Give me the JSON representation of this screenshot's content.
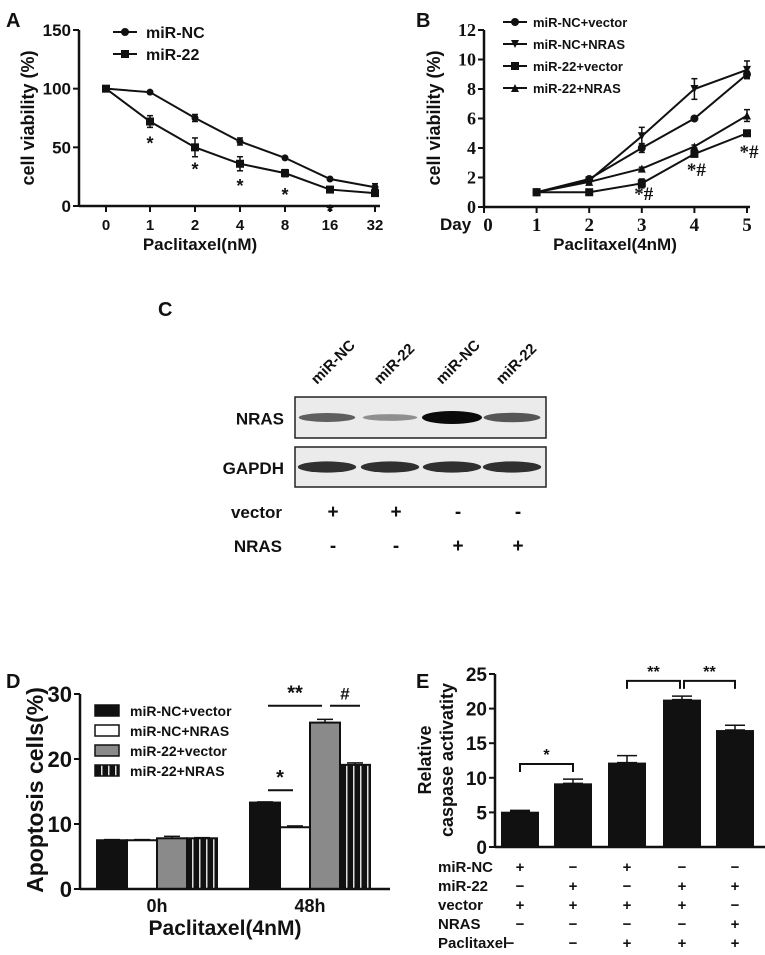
{
  "panels": {
    "A": "A",
    "B": "B",
    "C": "C",
    "D": "D",
    "E": "E"
  },
  "chart_data": [
    {
      "id": "A",
      "type": "line",
      "xlabel": "Paclitaxel(nM)",
      "ylabel": "cell viability (%)",
      "categories": [
        "0",
        "1",
        "2",
        "4",
        "8",
        "16",
        "32"
      ],
      "ylim": [
        0,
        150
      ],
      "yticks": [
        0,
        50,
        100,
        150
      ],
      "legend_position": "top-left",
      "series": [
        {
          "name": "miR-NC",
          "marker": "circle",
          "values": [
            100,
            97,
            75,
            55,
            41,
            23,
            16
          ],
          "errors": [
            1,
            1,
            3,
            3,
            1,
            1,
            3
          ]
        },
        {
          "name": "miR-22",
          "marker": "square",
          "values": [
            100,
            72,
            50,
            36,
            28,
            14,
            11
          ],
          "errors": [
            1,
            5,
            8,
            6,
            3,
            2,
            2
          ]
        }
      ],
      "annotations": [
        {
          "index": 1,
          "text": "*"
        },
        {
          "index": 2,
          "text": "*"
        },
        {
          "index": 3,
          "text": "*"
        },
        {
          "index": 4,
          "text": "*"
        },
        {
          "index": 5,
          "text": "*"
        }
      ]
    },
    {
      "id": "B",
      "type": "line",
      "xlabel": "Paclitaxel(4nM)",
      "ylabel": "cell viability (%)",
      "xprefix": "Day",
      "x": [
        1,
        2,
        3,
        4,
        5
      ],
      "xlim": [
        0,
        5
      ],
      "xticks": [
        0,
        1,
        2,
        3,
        4,
        5
      ],
      "ylim": [
        0,
        12
      ],
      "yticks": [
        0,
        2,
        4,
        6,
        8,
        10,
        12
      ],
      "legend_position": "top-left",
      "series": [
        {
          "name": "miR-NC+vector",
          "marker": "circle",
          "values": [
            1,
            1.9,
            4,
            6,
            9
          ],
          "errors": [
            0.05,
            0.1,
            0.3,
            0.1,
            0.2
          ]
        },
        {
          "name": "miR-NC+NRAS",
          "marker": "triangle-down",
          "values": [
            1,
            1.8,
            4.8,
            8,
            9.3
          ],
          "errors": [
            0.05,
            0.1,
            0.6,
            0.7,
            0.6
          ]
        },
        {
          "name": "miR-22+vector",
          "marker": "square",
          "values": [
            1,
            1,
            1.6,
            3.6,
            5
          ],
          "errors": [
            0.05,
            0.05,
            0.3,
            0.15,
            0.1
          ]
        },
        {
          "name": "miR-22+NRAS",
          "marker": "triangle",
          "values": [
            1,
            1.7,
            2.6,
            4.1,
            6.2
          ],
          "errors": [
            0.05,
            0.1,
            0.1,
            0.1,
            0.4
          ]
        }
      ],
      "annotations": [
        {
          "x": 3,
          "text": "*#"
        },
        {
          "x": 4,
          "text": "*#"
        },
        {
          "x": 5,
          "text": "*#"
        }
      ]
    },
    {
      "id": "D",
      "type": "bar",
      "xlabel": "Paclitaxel(4nM)",
      "ylabel": "Apoptosis cells(%)",
      "categories": [
        "0h",
        "48h"
      ],
      "ylim": [
        0,
        30
      ],
      "yticks": [
        0,
        10,
        20,
        30
      ],
      "legend_position": "top-left",
      "series": [
        {
          "name": "miR-NC+vector",
          "fill": "black",
          "values": [
            7.5,
            13.3
          ],
          "errors": [
            0.1,
            0.1
          ]
        },
        {
          "name": "miR-NC+NRAS",
          "fill": "white",
          "values": [
            7.5,
            9.5
          ],
          "errors": [
            0.1,
            0.2
          ]
        },
        {
          "name": "miR-22+vector",
          "fill": "gray",
          "values": [
            7.8,
            25.6
          ],
          "errors": [
            0.3,
            0.5
          ]
        },
        {
          "name": "miR-22+NRAS",
          "fill": "striped",
          "values": [
            7.8,
            19.1
          ],
          "errors": [
            0.1,
            0.3
          ]
        }
      ],
      "significance": [
        {
          "group": 1,
          "from": 0,
          "to": 1,
          "level": 15.2,
          "text": "*"
        },
        {
          "group": 1,
          "from": 0,
          "to": 2,
          "level": 28.2,
          "text": "**"
        },
        {
          "group": 1,
          "from": 2,
          "to": 3,
          "level": 28.2,
          "text": "#"
        }
      ]
    },
    {
      "id": "E",
      "type": "bar",
      "ylabel_lines": [
        "Relative",
        "caspase activatity"
      ],
      "ylim": [
        0,
        25
      ],
      "yticks": [
        0,
        5,
        10,
        15,
        20,
        25
      ],
      "values": [
        5.1,
        9.2,
        12.2,
        21.3,
        16.9
      ],
      "errors": [
        0.2,
        0.6,
        1.0,
        0.5,
        0.7
      ],
      "conditions": [
        {
          "label": "miR-NC",
          "signs": [
            "+",
            "−",
            "+",
            "−",
            "−"
          ]
        },
        {
          "label": "miR-22",
          "signs": [
            "−",
            "+",
            "−",
            "+",
            "+"
          ]
        },
        {
          "label": "vector",
          "signs": [
            "+",
            "+",
            "+",
            "+",
            "−"
          ]
        },
        {
          "label": "NRAS",
          "signs": [
            "−",
            "−",
            "−",
            "−",
            "+"
          ]
        },
        {
          "label": "Paclitaxel",
          "signs": [
            "−",
            "−",
            "+",
            "+",
            "+"
          ]
        }
      ],
      "significance": [
        {
          "from": 0,
          "to": 1,
          "level": 12,
          "text": "*"
        },
        {
          "from": 2,
          "to": 3,
          "level": 24,
          "text": "**"
        },
        {
          "from": 3,
          "to": 4,
          "level": 24,
          "text": "**"
        }
      ]
    }
  ],
  "blot": {
    "lanes": [
      "miR-NC",
      "miR-22",
      "miR-NC",
      "miR-22"
    ],
    "rows": [
      {
        "label": "NRAS",
        "intensity": [
          0.55,
          0.3,
          1.0,
          0.6
        ]
      },
      {
        "label": "GAPDH",
        "intensity": [
          0.8,
          0.8,
          0.8,
          0.8
        ]
      }
    ],
    "conditions": [
      {
        "label": "vector",
        "signs": [
          "+",
          "+",
          "-",
          "-"
        ]
      },
      {
        "label": "NRAS",
        "signs": [
          "-",
          "-",
          "+",
          "+"
        ]
      }
    ]
  }
}
